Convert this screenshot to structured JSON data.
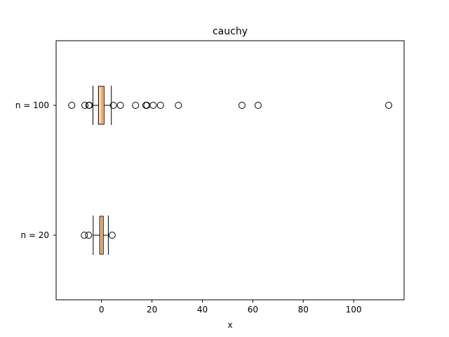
{
  "chart_data": {
    "type": "boxplot",
    "orientation": "horizontal",
    "title": "cauchy",
    "xlabel": "x",
    "ylabel": "",
    "xlim": [
      -18,
      120
    ],
    "xticks": [
      0,
      20,
      40,
      60,
      80,
      100
    ],
    "grid": false,
    "colors": {
      "box_fill": "#fdd9b4",
      "box_edge": "#000000",
      "median": "#f58518",
      "outlier": "#000000"
    },
    "series": [
      {
        "name": "n = 100",
        "whislo": -3.4,
        "q1": -1.2,
        "median": 0.2,
        "q3": 1.0,
        "whishi": 3.9,
        "fliers": [
          -11.8,
          -6.6,
          -5.0,
          -4.8,
          4.7,
          7.5,
          13.5,
          17.6,
          18.0,
          20.5,
          23.4,
          30.5,
          55.7,
          62.1,
          113.9
        ]
      },
      {
        "name": "n = 20",
        "whislo": -3.3,
        "q1": -0.7,
        "median": 0.0,
        "q3": 0.7,
        "whishi": 2.7,
        "fliers": [
          -6.8,
          -5.1,
          4.2
        ]
      }
    ]
  }
}
